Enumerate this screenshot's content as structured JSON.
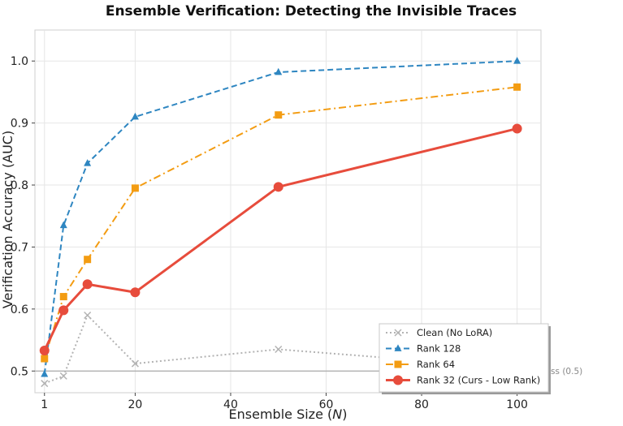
{
  "chart_data": {
    "type": "line",
    "title": "Ensemble Verification: Detecting the Invisible Traces",
    "xlabel": "Ensemble Size (",
    "xlabel_var": "N",
    "xlabel_end": ")",
    "ylabel": "Verification Accuracy (AUC)",
    "xlim": [
      -1,
      105
    ],
    "ylim": [
      0.465,
      1.05
    ],
    "xticks": [
      1,
      20,
      40,
      60,
      80,
      100
    ],
    "yticks": [
      0.5,
      0.6,
      0.7,
      0.8,
      0.9,
      1.0
    ],
    "xtick_labels": [
      "1",
      "20",
      "40",
      "60",
      "80",
      "100"
    ],
    "ytick_labels": [
      "0.5",
      "0.6",
      "0.7",
      "0.8",
      "0.9",
      "1.0"
    ],
    "grid": true,
    "legend_position": "lower-right",
    "reference_line": {
      "y": 0.5,
      "label": "Random Guess (0.5)",
      "color": "#aaaaaa"
    },
    "series": [
      {
        "name": "Clean (No LoRA)",
        "x": [
          1,
          5,
          10,
          20,
          50,
          100
        ],
        "values": [
          0.48,
          0.492,
          0.59,
          0.512,
          0.535,
          0.505
        ],
        "color": "#b3b3b3",
        "marker": "x",
        "style": "dotted"
      },
      {
        "name": "Rank 128",
        "x": [
          1,
          5,
          10,
          20,
          50,
          100
        ],
        "values": [
          0.495,
          0.735,
          0.835,
          0.91,
          0.982,
          1.0
        ],
        "color": "#2e86c1",
        "marker": "triangle",
        "style": "dashed"
      },
      {
        "name": "Rank 64",
        "x": [
          1,
          5,
          10,
          20,
          50,
          100
        ],
        "values": [
          0.52,
          0.62,
          0.68,
          0.795,
          0.913,
          0.958
        ],
        "color": "#f39c12",
        "marker": "square",
        "style": "dashdot"
      },
      {
        "name": "Rank 32 (Curs - Low Rank)",
        "x": [
          1,
          5,
          10,
          20,
          50,
          100
        ],
        "values": [
          0.533,
          0.598,
          0.64,
          0.627,
          0.797,
          0.891
        ],
        "color": "#e74c3c",
        "marker": "circle",
        "style": "solid"
      }
    ]
  }
}
